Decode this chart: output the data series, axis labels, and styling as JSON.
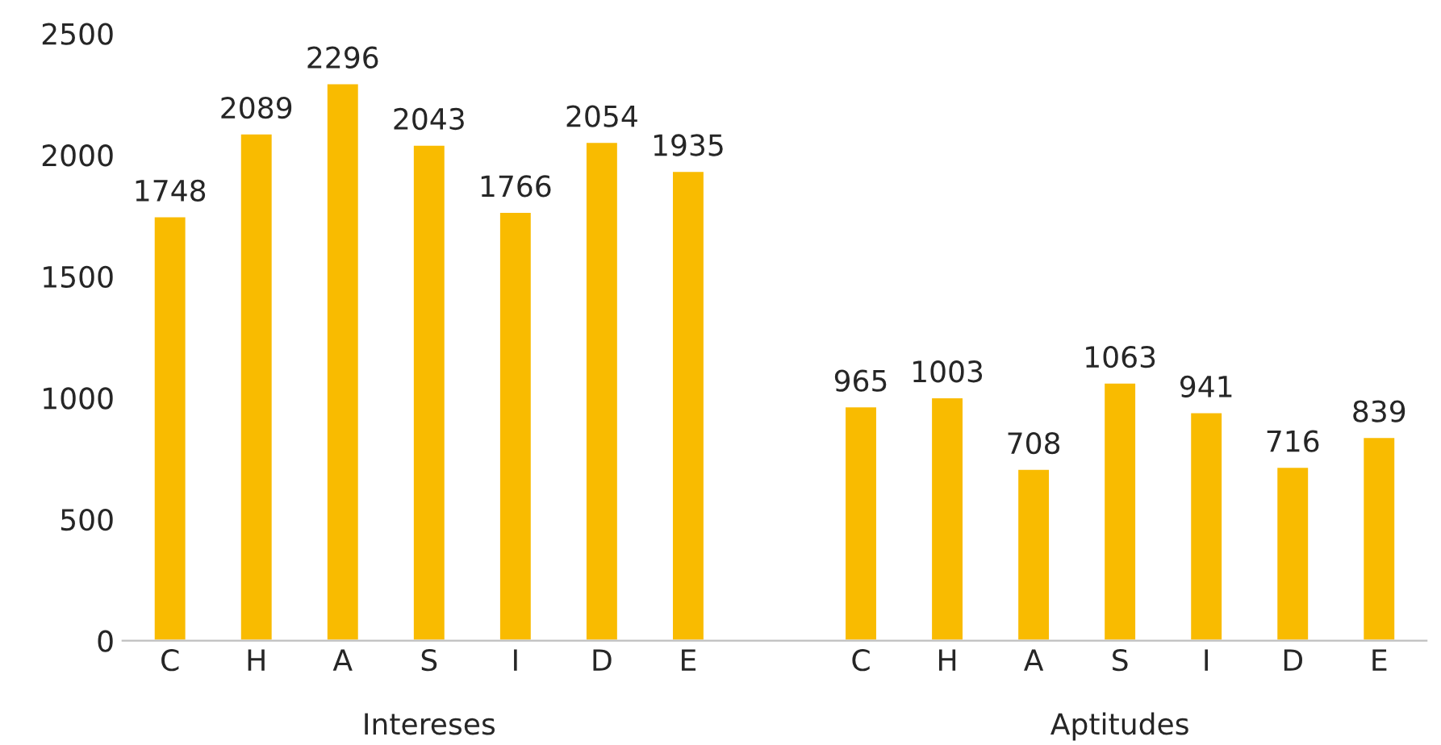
{
  "chart_data": {
    "type": "bar",
    "categories": [
      "C",
      "H",
      "A",
      "S",
      "I",
      "D",
      "E",
      null,
      "C",
      "H",
      "A",
      "S",
      "I",
      "D",
      "E"
    ],
    "values": [
      1748,
      2089,
      2296,
      2043,
      1766,
      2054,
      1935,
      null,
      965,
      1003,
      708,
      1063,
      941,
      716,
      839
    ],
    "color": "#f9bb00",
    "ylim": [
      0,
      2500
    ],
    "yticks": [
      0,
      500,
      1000,
      1500,
      2000,
      2500
    ],
    "data_labels": true,
    "grid": false,
    "legend": false,
    "annotations": [
      "Intereses",
      "Aptitudes"
    ]
  }
}
